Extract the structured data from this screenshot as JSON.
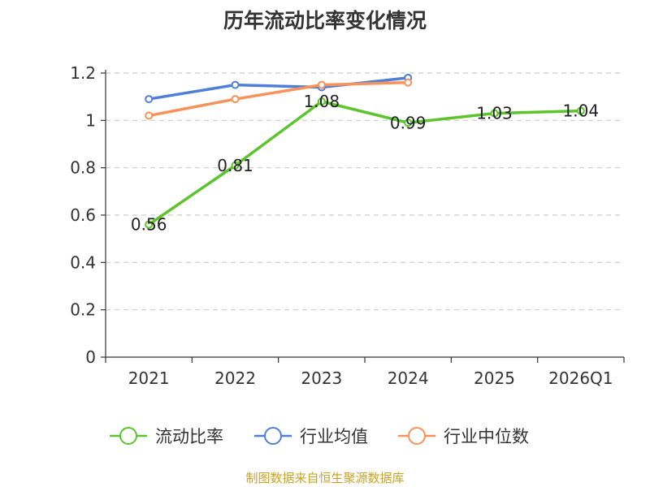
{
  "chart_data": {
    "type": "line",
    "title": "历年流动比率变化情况",
    "categories": [
      "2021",
      "2022",
      "2023",
      "2024",
      "2025",
      "2026Q1"
    ],
    "ylim": [
      0,
      1.2
    ],
    "yticks": [
      "0",
      "0.2",
      "0.4",
      "0.6",
      "0.8",
      "1",
      "1.2"
    ],
    "grid": true,
    "legend_position": "bottom",
    "series": [
      {
        "name": "流动比率",
        "color": "#5cc42c",
        "values": [
          0.56,
          0.81,
          1.08,
          0.99,
          1.03,
          1.04
        ],
        "labels": [
          "0.56",
          "0.81",
          "1.08",
          "0.99",
          "1.03",
          "1.04"
        ]
      },
      {
        "name": "行业均值",
        "color": "#4f7fd9",
        "values": [
          1.09,
          1.15,
          1.14,
          1.18,
          null,
          null
        ]
      },
      {
        "name": "行业中位数",
        "color": "#f6925a",
        "values": [
          1.02,
          1.09,
          1.15,
          1.16,
          null,
          null
        ]
      }
    ]
  },
  "footer": {
    "source": "制图数据来自恒生聚源数据库"
  }
}
